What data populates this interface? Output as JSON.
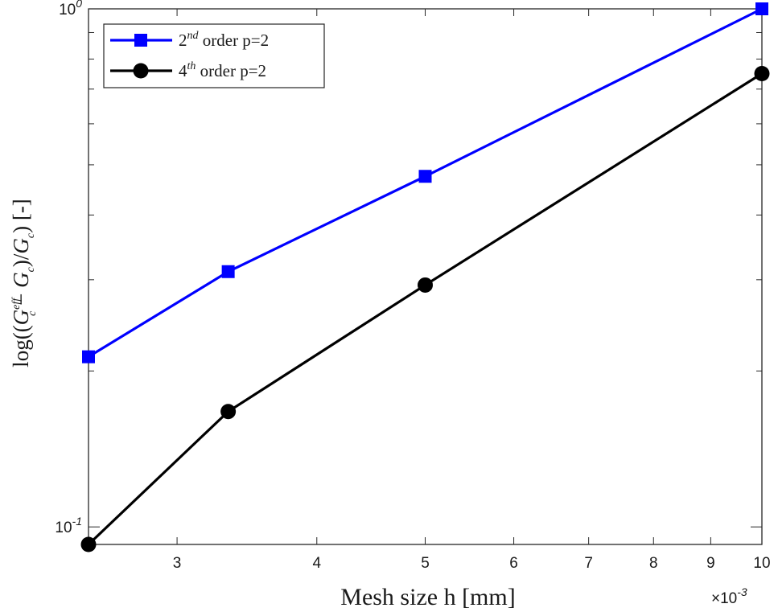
{
  "chart_data": {
    "type": "line",
    "x_scale": "log",
    "y_scale": "log",
    "xlim": [
      0.0025,
      0.01
    ],
    "ylim": [
      0.0925,
      1.0
    ],
    "x_ticks": [
      {
        "value": 0.003,
        "label": "3"
      },
      {
        "value": 0.004,
        "label": "4"
      },
      {
        "value": 0.005,
        "label": "5"
      },
      {
        "value": 0.006,
        "label": "6"
      },
      {
        "value": 0.007,
        "label": "7"
      },
      {
        "value": 0.008,
        "label": "8"
      },
      {
        "value": 0.009,
        "label": "9"
      },
      {
        "value": 0.01,
        "label": "10"
      }
    ],
    "x_exponent_label": "×10",
    "x_exponent_power": "-3",
    "y_major_ticks": [
      {
        "value": 0.1,
        "base": "10",
        "power": "-1"
      },
      {
        "value": 1.0,
        "base": "10",
        "power": "0"
      }
    ],
    "y_minor_ticks": [
      0.2,
      0.3,
      0.4,
      0.5,
      0.6,
      0.7,
      0.8,
      0.9
    ],
    "xlabel": "Mesh size h [mm]",
    "ylabel": {
      "prefix": "log",
      "open": "((",
      "g1": "G",
      "g1_sup": "eff",
      "g1_sub": "c",
      "minus": " − ",
      "g2": "G",
      "g2_sub": "c",
      "mid": ")/",
      "g3": "G",
      "g3_sub": "c",
      "close": ")",
      "unit": " [-]"
    },
    "grid": false,
    "legend_position": "top-left",
    "series": [
      {
        "name_base": "2",
        "name_sup": "nd",
        "name_rest": " order p=2",
        "color": "#0000ff",
        "marker": "square",
        "x": [
          0.0025,
          0.003333,
          0.005,
          0.01
        ],
        "y": [
          0.213,
          0.311,
          0.475,
          1.0
        ]
      },
      {
        "name_base": "4",
        "name_sup": "th",
        "name_rest": " order p=2",
        "color": "#000000",
        "marker": "circle",
        "x": [
          0.0025,
          0.003333,
          0.005,
          0.01
        ],
        "y": [
          0.0925,
          0.167,
          0.293,
          0.75
        ]
      }
    ]
  }
}
